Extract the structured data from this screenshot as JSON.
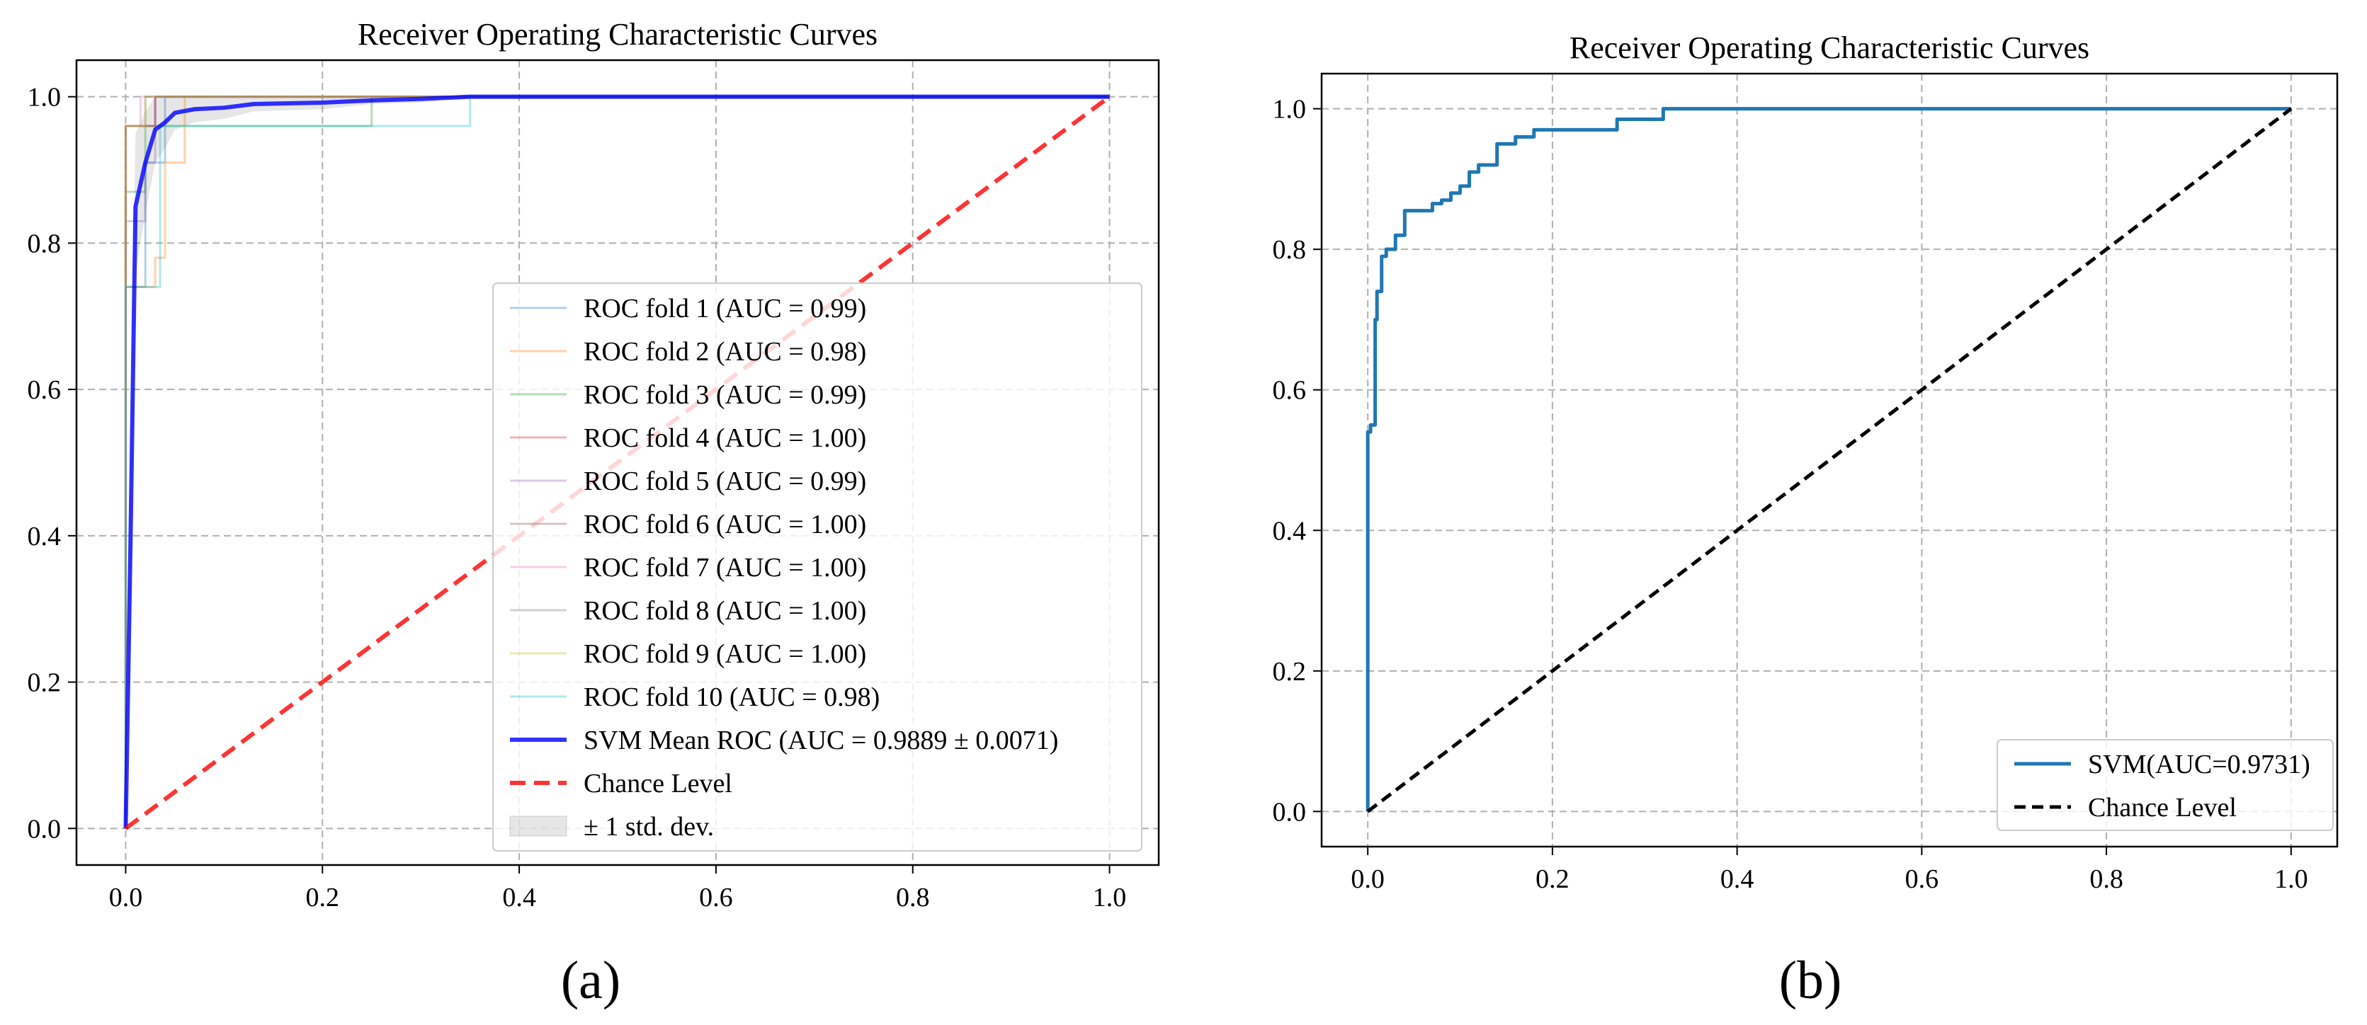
{
  "panel_labels": [
    "(a)",
    "(b)"
  ],
  "chart_data": [
    {
      "type": "line",
      "title": "Receiver Operating Characteristic Curves",
      "xlabel": "",
      "ylabel": "",
      "xlim": [
        -0.05,
        1.05
      ],
      "ylim": [
        -0.05,
        1.05
      ],
      "xticks": [
        "0.0",
        "0.2",
        "0.4",
        "0.6",
        "0.8",
        "1.0"
      ],
      "yticks": [
        "0.0",
        "0.2",
        "0.4",
        "0.6",
        "0.8",
        "1.0"
      ],
      "grid": true,
      "legend_position": "lower-right",
      "series": [
        {
          "name": "ROC fold 1 (AUC = 0.99)",
          "color": "#1f77b4",
          "opacity": 0.35,
          "x": [
            0,
            0,
            0.02,
            0.02,
            0.04,
            0.04,
            1
          ],
          "y": [
            0,
            0.74,
            0.74,
            0.91,
            0.91,
            1,
            1
          ]
        },
        {
          "name": "ROC fold 2 (AUC = 0.98)",
          "color": "#ff7f0e",
          "opacity": 0.35,
          "x": [
            0,
            0,
            0.03,
            0.03,
            0.04,
            0.04,
            0.06,
            0.06,
            1
          ],
          "y": [
            0,
            0.74,
            0.74,
            0.78,
            0.78,
            0.91,
            0.91,
            1,
            1
          ]
        },
        {
          "name": "ROC fold 3 (AUC = 0.99)",
          "color": "#2ca02c",
          "opacity": 0.35,
          "x": [
            0,
            0,
            0.02,
            0.02,
            0.25,
            0.25,
            1
          ],
          "y": [
            0,
            0.87,
            0.87,
            0.96,
            0.96,
            1,
            1
          ]
        },
        {
          "name": "ROC fold 4 (AUC = 1.00)",
          "color": "#d62728",
          "opacity": 0.35,
          "x": [
            0,
            0,
            0.03,
            0.03,
            1
          ],
          "y": [
            0,
            0.96,
            0.96,
            1,
            1
          ]
        },
        {
          "name": "ROC fold 5 (AUC = 0.99)",
          "color": "#9467bd",
          "opacity": 0.35,
          "x": [
            0,
            0,
            0.02,
            0.02,
            0.03,
            0.03,
            1
          ],
          "y": [
            0,
            0.83,
            0.83,
            0.91,
            0.91,
            1,
            1
          ]
        },
        {
          "name": "ROC fold 6 (AUC = 1.00)",
          "color": "#8c564b",
          "opacity": 0.35,
          "x": [
            0,
            0,
            0.03,
            0.03,
            1
          ],
          "y": [
            0,
            0.96,
            0.96,
            1,
            1
          ]
        },
        {
          "name": "ROC fold 7 (AUC = 1.00)",
          "color": "#e377c2",
          "opacity": 0.35,
          "x": [
            0,
            0,
            0.015,
            0.015,
            1
          ],
          "y": [
            0,
            0.96,
            0.96,
            1,
            1
          ]
        },
        {
          "name": "ROC fold 8 (AUC = 1.00)",
          "color": "#7f7f7f",
          "opacity": 0.35,
          "x": [
            0,
            0,
            0.02,
            0.02,
            1
          ],
          "y": [
            0,
            0.96,
            0.96,
            1,
            1
          ]
        },
        {
          "name": "ROC fold 9 (AUC = 1.00)",
          "color": "#bcbd22",
          "opacity": 0.35,
          "x": [
            0,
            0,
            0.02,
            0.02,
            1
          ],
          "y": [
            0,
            0.96,
            0.96,
            1,
            1
          ]
        },
        {
          "name": "ROC fold 10 (AUC = 0.98)",
          "color": "#17becf",
          "opacity": 0.35,
          "x": [
            0,
            0,
            0.035,
            0.035,
            0.35,
            0.35,
            1
          ],
          "y": [
            0,
            0.74,
            0.74,
            0.96,
            0.96,
            1,
            1
          ]
        },
        {
          "name": "SVM Mean ROC (AUC = 0.9889 ± 0.0071)",
          "color": "#0000ff",
          "opacity": 0.8,
          "width": 6,
          "x": [
            0,
            0.005,
            0.01,
            0.02,
            0.03,
            0.04,
            0.05,
            0.07,
            0.1,
            0.13,
            0.2,
            0.25,
            0.3,
            0.35,
            0.5,
            1.0
          ],
          "y": [
            0,
            0.4,
            0.85,
            0.91,
            0.955,
            0.965,
            0.978,
            0.983,
            0.985,
            0.99,
            0.992,
            0.995,
            0.997,
            1.0,
            1.0,
            1.0
          ]
        },
        {
          "name": "Chance Level",
          "color": "#ff0000",
          "opacity": 0.8,
          "width": 6,
          "dash": "22,12",
          "x": [
            0,
            1
          ],
          "y": [
            0,
            1
          ]
        }
      ],
      "std_band": {
        "name": "± 1 std. dev.",
        "color": "#808080",
        "opacity": 0.2,
        "x": [
          0,
          0.005,
          0.01,
          0.02,
          0.03,
          0.04,
          0.05,
          0.07,
          0.1,
          0.13,
          0.2,
          0.25,
          0.3,
          0.35,
          0.5,
          1.0
        ],
        "upper": [
          0,
          0.55,
          0.95,
          0.98,
          1.0,
          1.0,
          1.0,
          1.0,
          1.0,
          1.0,
          1.0,
          1.0,
          1.0,
          1.0,
          1.0,
          1.0
        ],
        "lower": [
          0,
          0.25,
          0.76,
          0.84,
          0.91,
          0.93,
          0.955,
          0.965,
          0.97,
          0.98,
          0.983,
          0.99,
          0.992,
          1.0,
          1.0,
          1.0
        ]
      }
    },
    {
      "type": "line",
      "title": "Receiver Operating Characteristic Curves",
      "xlabel": "",
      "ylabel": "",
      "xlim": [
        -0.05,
        1.05
      ],
      "ylim": [
        -0.05,
        1.05
      ],
      "xticks": [
        "0.0",
        "0.2",
        "0.4",
        "0.6",
        "0.8",
        "1.0"
      ],
      "yticks": [
        "0.0",
        "0.2",
        "0.4",
        "0.6",
        "0.8",
        "1.0"
      ],
      "grid": true,
      "legend_position": "lower-right",
      "series": [
        {
          "name": "SVM(AUC=0.9731)",
          "color": "#1f77b4",
          "opacity": 1,
          "width": 5,
          "step": true,
          "x": [
            0,
            0,
            0.003,
            0.003,
            0.008,
            0.008,
            0.01,
            0.01,
            0.015,
            0.015,
            0.02,
            0.02,
            0.03,
            0.03,
            0.04,
            0.04,
            0.07,
            0.07,
            0.08,
            0.08,
            0.09,
            0.09,
            0.1,
            0.1,
            0.11,
            0.11,
            0.12,
            0.12,
            0.14,
            0.14,
            0.16,
            0.16,
            0.18,
            0.18,
            0.27,
            0.27,
            0.32,
            0.32,
            1.0
          ],
          "y": [
            0,
            0.54,
            0.54,
            0.55,
            0.55,
            0.7,
            0.7,
            0.74,
            0.74,
            0.79,
            0.79,
            0.8,
            0.8,
            0.82,
            0.82,
            0.855,
            0.855,
            0.865,
            0.865,
            0.87,
            0.87,
            0.88,
            0.88,
            0.89,
            0.89,
            0.91,
            0.91,
            0.92,
            0.92,
            0.95,
            0.95,
            0.96,
            0.96,
            0.97,
            0.97,
            0.985,
            0.985,
            1.0,
            1.0
          ]
        },
        {
          "name": "Chance Level",
          "color": "#000000",
          "opacity": 1,
          "width": 5,
          "dash": "16,9",
          "x": [
            0,
            1
          ],
          "y": [
            0,
            1
          ]
        }
      ]
    }
  ]
}
